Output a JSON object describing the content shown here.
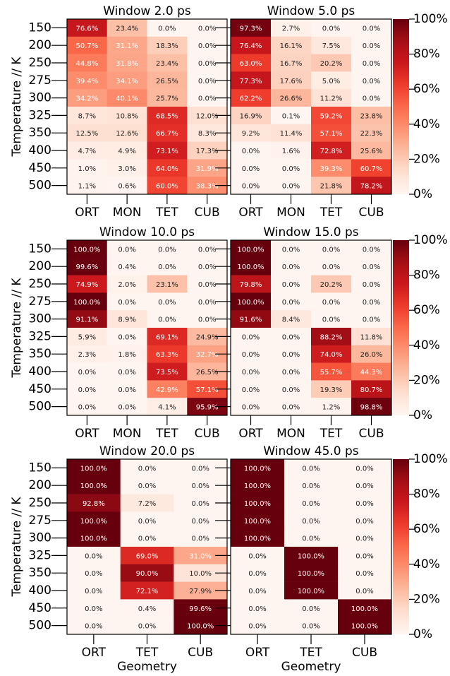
{
  "chart_data": [
    {
      "type": "heatmap",
      "title": "Window 2.0 ps",
      "ylabel": "Temperature // K",
      "colormap": "Reds",
      "x": [
        "ORT",
        "MON",
        "TET",
        "CUB"
      ],
      "y": [
        "150",
        "200",
        "250",
        "275",
        "300",
        "325",
        "350",
        "400",
        "450",
        "500"
      ],
      "values": [
        [
          76.6,
          23.4,
          0.0,
          0.0
        ],
        [
          50.7,
          31.1,
          18.3,
          0.0
        ],
        [
          44.8,
          31.8,
          23.4,
          0.0
        ],
        [
          39.4,
          34.1,
          26.5,
          0.0
        ],
        [
          34.2,
          40.1,
          25.7,
          0.0
        ],
        [
          8.7,
          10.8,
          68.5,
          12.0
        ],
        [
          12.5,
          12.6,
          66.7,
          8.3
        ],
        [
          4.7,
          4.9,
          73.1,
          17.3
        ],
        [
          1.0,
          3.0,
          64.0,
          31.9
        ],
        [
          1.1,
          0.6,
          60.0,
          38.3
        ]
      ],
      "value_labels": [
        [
          "76.6%",
          "23.4%",
          "0.0%",
          "0.0%"
        ],
        [
          "50.7%",
          "31.1%",
          "18.3%",
          "0.0%"
        ],
        [
          "44.8%",
          "31.8%",
          "23.4%",
          "0.0%"
        ],
        [
          "39.4%",
          "34.1%",
          "26.5%",
          "0.0%"
        ],
        [
          "34.2%",
          "40.1%",
          "25.7%",
          "0.0%"
        ],
        [
          "8.7%",
          "10.8%",
          "68.5%",
          "12.0%"
        ],
        [
          "12.5%",
          "12.6%",
          "66.7%",
          "8.3%"
        ],
        [
          "4.7%",
          "4.9%",
          "73.1%",
          "17.3%"
        ],
        [
          "1.0%",
          "3.0%",
          "64.0%",
          "31.9%"
        ],
        [
          "1.1%",
          "0.6%",
          "60.0%",
          "38.3%"
        ]
      ]
    },
    {
      "type": "heatmap",
      "title": "Window 5.0 ps",
      "colormap": "Reds",
      "x": [
        "ORT",
        "MON",
        "TET",
        "CUB"
      ],
      "y": [
        "150",
        "200",
        "250",
        "275",
        "300",
        "325",
        "350",
        "400",
        "450",
        "500"
      ],
      "values": [
        [
          97.3,
          2.7,
          0.0,
          0.0
        ],
        [
          76.4,
          16.1,
          7.5,
          0.0
        ],
        [
          63.0,
          16.7,
          20.2,
          0.0
        ],
        [
          77.3,
          17.6,
          5.0,
          0.0
        ],
        [
          62.2,
          26.6,
          11.2,
          0.0
        ],
        [
          16.9,
          0.1,
          59.2,
          23.8
        ],
        [
          9.2,
          11.4,
          57.1,
          22.3
        ],
        [
          0.0,
          1.6,
          72.8,
          25.6
        ],
        [
          0.0,
          0.0,
          39.3,
          60.7
        ],
        [
          0.0,
          0.0,
          21.8,
          78.2
        ]
      ],
      "value_labels": [
        [
          "97.3%",
          "2.7%",
          "0.0%",
          "0.0%"
        ],
        [
          "76.4%",
          "16.1%",
          "7.5%",
          "0.0%"
        ],
        [
          "63.0%",
          "16.7%",
          "20.2%",
          "0.0%"
        ],
        [
          "77.3%",
          "17.6%",
          "5.0%",
          "0.0%"
        ],
        [
          "62.2%",
          "26.6%",
          "11.2%",
          "0.0%"
        ],
        [
          "16.9%",
          "0.1%",
          "59.2%",
          "23.8%"
        ],
        [
          "9.2%",
          "11.4%",
          "57.1%",
          "22.3%"
        ],
        [
          "0.0%",
          "1.6%",
          "72.8%",
          "25.6%"
        ],
        [
          "0.0%",
          "0.0%",
          "39.3%",
          "60.7%"
        ],
        [
          "0.0%",
          "0.0%",
          "21.8%",
          "78.2%"
        ]
      ],
      "colorbar": {
        "lim": [
          0,
          100
        ],
        "ticks": [
          {
            "value": 0,
            "label": "0%"
          },
          {
            "value": 20,
            "label": "20%"
          },
          {
            "value": 40,
            "label": "40%"
          },
          {
            "value": 60,
            "label": "60%"
          },
          {
            "value": 80,
            "label": "80%"
          },
          {
            "value": 100,
            "label": "100%"
          }
        ]
      }
    },
    {
      "type": "heatmap",
      "title": "Window 10.0 ps",
      "ylabel": "Temperature // K",
      "colormap": "Reds",
      "x": [
        "ORT",
        "MON",
        "TET",
        "CUB"
      ],
      "y": [
        "150",
        "200",
        "250",
        "275",
        "300",
        "325",
        "350",
        "400",
        "450",
        "500"
      ],
      "values": [
        [
          100.0,
          0.0,
          0.0,
          0.0
        ],
        [
          99.6,
          0.4,
          0.0,
          0.0
        ],
        [
          74.9,
          2.0,
          23.1,
          0.0
        ],
        [
          100.0,
          0.0,
          0.0,
          0.0
        ],
        [
          91.1,
          8.9,
          0.0,
          0.0
        ],
        [
          5.9,
          0.0,
          69.1,
          24.9
        ],
        [
          2.3,
          1.8,
          63.3,
          32.7
        ],
        [
          0.0,
          0.0,
          73.5,
          26.5
        ],
        [
          0.0,
          0.0,
          42.9,
          57.1
        ],
        [
          0.0,
          0.0,
          4.1,
          95.9
        ]
      ],
      "value_labels": [
        [
          "100.0%",
          "0.0%",
          "0.0%",
          "0.0%"
        ],
        [
          "99.6%",
          "0.4%",
          "0.0%",
          "0.0%"
        ],
        [
          "74.9%",
          "2.0%",
          "23.1%",
          "0.0%"
        ],
        [
          "100.0%",
          "0.0%",
          "0.0%",
          "0.0%"
        ],
        [
          "91.1%",
          "8.9%",
          "0.0%",
          "0.0%"
        ],
        [
          "5.9%",
          "0.0%",
          "69.1%",
          "24.9%"
        ],
        [
          "2.3%",
          "1.8%",
          "63.3%",
          "32.7%"
        ],
        [
          "0.0%",
          "0.0%",
          "73.5%",
          "26.5%"
        ],
        [
          "0.0%",
          "0.0%",
          "42.9%",
          "57.1%"
        ],
        [
          "0.0%",
          "0.0%",
          "4.1%",
          "95.9%"
        ]
      ]
    },
    {
      "type": "heatmap",
      "title": "Window 15.0 ps",
      "colormap": "Reds",
      "x": [
        "ORT",
        "MON",
        "TET",
        "CUB"
      ],
      "y": [
        "150",
        "200",
        "250",
        "275",
        "300",
        "325",
        "350",
        "400",
        "450",
        "500"
      ],
      "values": [
        [
          100.0,
          0.0,
          0.0,
          0.0
        ],
        [
          100.0,
          0.0,
          0.0,
          0.0
        ],
        [
          79.8,
          0.0,
          20.2,
          0.0
        ],
        [
          100.0,
          0.0,
          0.0,
          0.0
        ],
        [
          91.6,
          8.4,
          0.0,
          0.0
        ],
        [
          0.0,
          0.0,
          88.2,
          11.8
        ],
        [
          0.0,
          0.0,
          74.0,
          26.0
        ],
        [
          0.0,
          0.0,
          55.7,
          44.3
        ],
        [
          0.0,
          0.0,
          19.3,
          80.7
        ],
        [
          0.0,
          0.0,
          1.2,
          98.8
        ]
      ],
      "value_labels": [
        [
          "100.0%",
          "0.0%",
          "0.0%",
          "0.0%"
        ],
        [
          "100.0%",
          "0.0%",
          "0.0%",
          "0.0%"
        ],
        [
          "79.8%",
          "0.0%",
          "20.2%",
          "0.0%"
        ],
        [
          "100.0%",
          "0.0%",
          "0.0%",
          "0.0%"
        ],
        [
          "91.6%",
          "8.4%",
          "0.0%",
          "0.0%"
        ],
        [
          "0.0%",
          "0.0%",
          "88.2%",
          "11.8%"
        ],
        [
          "0.0%",
          "0.0%",
          "74.0%",
          "26.0%"
        ],
        [
          "0.0%",
          "0.0%",
          "55.7%",
          "44.3%"
        ],
        [
          "0.0%",
          "0.0%",
          "19.3%",
          "80.7%"
        ],
        [
          "0.0%",
          "0.0%",
          "1.2%",
          "98.8%"
        ]
      ],
      "colorbar": {
        "lim": [
          0,
          100
        ],
        "ticks": [
          {
            "value": 0,
            "label": "0%"
          },
          {
            "value": 20,
            "label": "20%"
          },
          {
            "value": 40,
            "label": "40%"
          },
          {
            "value": 60,
            "label": "60%"
          },
          {
            "value": 80,
            "label": "80%"
          },
          {
            "value": 100,
            "label": "100%"
          }
        ]
      }
    },
    {
      "type": "heatmap",
      "title": "Window 20.0 ps",
      "ylabel": "Temperature // K",
      "xlabel": "Geometry",
      "colormap": "Reds",
      "x": [
        "ORT",
        "TET",
        "CUB"
      ],
      "y": [
        "150",
        "200",
        "250",
        "275",
        "300",
        "325",
        "350",
        "400",
        "450",
        "500"
      ],
      "values": [
        [
          100.0,
          0.0,
          0.0
        ],
        [
          100.0,
          0.0,
          0.0
        ],
        [
          92.8,
          7.2,
          0.0
        ],
        [
          100.0,
          0.0,
          0.0
        ],
        [
          100.0,
          0.0,
          0.0
        ],
        [
          0.0,
          69.0,
          31.0
        ],
        [
          0.0,
          90.0,
          10.0
        ],
        [
          0.0,
          72.1,
          27.9
        ],
        [
          0.0,
          0.4,
          99.6
        ],
        [
          0.0,
          0.0,
          100.0
        ]
      ],
      "value_labels": [
        [
          "100.0%",
          "0.0%",
          "0.0%"
        ],
        [
          "100.0%",
          "0.0%",
          "0.0%"
        ],
        [
          "92.8%",
          "7.2%",
          "0.0%"
        ],
        [
          "100.0%",
          "0.0%",
          "0.0%"
        ],
        [
          "100.0%",
          "0.0%",
          "0.0%"
        ],
        [
          "0.0%",
          "69.0%",
          "31.0%"
        ],
        [
          "0.0%",
          "90.0%",
          "10.0%"
        ],
        [
          "0.0%",
          "72.1%",
          "27.9%"
        ],
        [
          "0.0%",
          "0.4%",
          "99.6%"
        ],
        [
          "0.0%",
          "0.0%",
          "100.0%"
        ]
      ]
    },
    {
      "type": "heatmap",
      "title": "Window 45.0 ps",
      "xlabel": "Geometry",
      "colormap": "Reds",
      "x": [
        "ORT",
        "TET",
        "CUB"
      ],
      "y": [
        "150",
        "200",
        "250",
        "275",
        "300",
        "325",
        "350",
        "400",
        "450",
        "500"
      ],
      "values": [
        [
          100.0,
          0.0,
          0.0
        ],
        [
          100.0,
          0.0,
          0.0
        ],
        [
          100.0,
          0.0,
          0.0
        ],
        [
          100.0,
          0.0,
          0.0
        ],
        [
          100.0,
          0.0,
          0.0
        ],
        [
          0.0,
          100.0,
          0.0
        ],
        [
          0.0,
          100.0,
          0.0
        ],
        [
          0.0,
          100.0,
          0.0
        ],
        [
          0.0,
          0.0,
          100.0
        ],
        [
          0.0,
          0.0,
          100.0
        ]
      ],
      "value_labels": [
        [
          "100.0%",
          "0.0%",
          "0.0%"
        ],
        [
          "100.0%",
          "0.0%",
          "0.0%"
        ],
        [
          "100.0%",
          "0.0%",
          "0.0%"
        ],
        [
          "100.0%",
          "0.0%",
          "0.0%"
        ],
        [
          "100.0%",
          "0.0%",
          "0.0%"
        ],
        [
          "0.0%",
          "100.0%",
          "0.0%"
        ],
        [
          "0.0%",
          "100.0%",
          "0.0%"
        ],
        [
          "0.0%",
          "100.0%",
          "0.0%"
        ],
        [
          "0.0%",
          "0.0%",
          "100.0%"
        ],
        [
          "0.0%",
          "0.0%",
          "100.0%"
        ]
      ],
      "colorbar": {
        "lim": [
          0,
          100
        ],
        "ticks": [
          {
            "value": 0,
            "label": "0%"
          },
          {
            "value": 20,
            "label": "20%"
          },
          {
            "value": 40,
            "label": "40%"
          },
          {
            "value": 60,
            "label": "60%"
          },
          {
            "value": 80,
            "label": "80%"
          },
          {
            "value": 100,
            "label": "100%"
          }
        ]
      }
    }
  ]
}
